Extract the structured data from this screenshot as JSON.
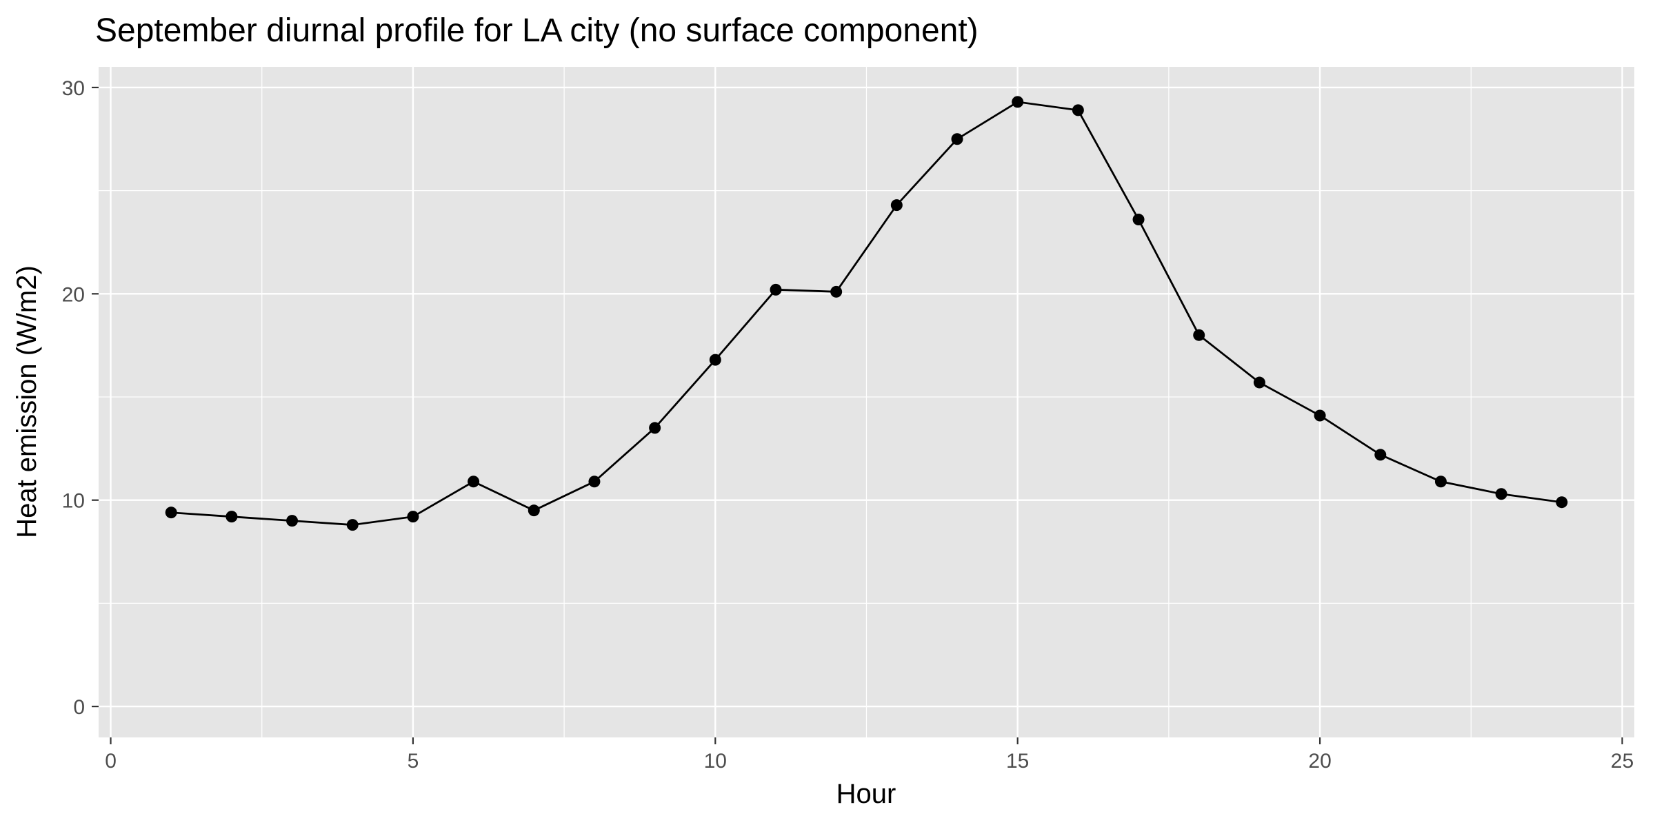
{
  "chart_data": {
    "type": "line",
    "title": "September diurnal profile for LA city (no surface component)",
    "xlabel": "Hour",
    "ylabel": "Heat emission (W/m2)",
    "xlim": [
      -0.2,
      25.2
    ],
    "ylim": [
      -1.5,
      31.0
    ],
    "x_ticks": [
      0,
      5,
      10,
      15,
      20,
      25
    ],
    "y_ticks": [
      0,
      10,
      20,
      30
    ],
    "grid": true,
    "legend": "none",
    "colors": {
      "panel_bg": "#e5e5e5",
      "grid": "#ffffff",
      "series": "#000000"
    },
    "series": [
      {
        "x": [
          1,
          2,
          3,
          4,
          5,
          6,
          7,
          8,
          9,
          10,
          11,
          12,
          13,
          14,
          15,
          16,
          17,
          18,
          19,
          20,
          21,
          22,
          23,
          24
        ],
        "values": [
          9.4,
          9.2,
          9.0,
          8.8,
          9.2,
          10.9,
          9.5,
          10.9,
          13.5,
          16.8,
          20.2,
          20.1,
          24.3,
          27.5,
          29.3,
          28.9,
          23.6,
          18.0,
          15.7,
          14.1,
          12.2,
          10.9,
          10.3,
          9.9
        ]
      }
    ]
  }
}
